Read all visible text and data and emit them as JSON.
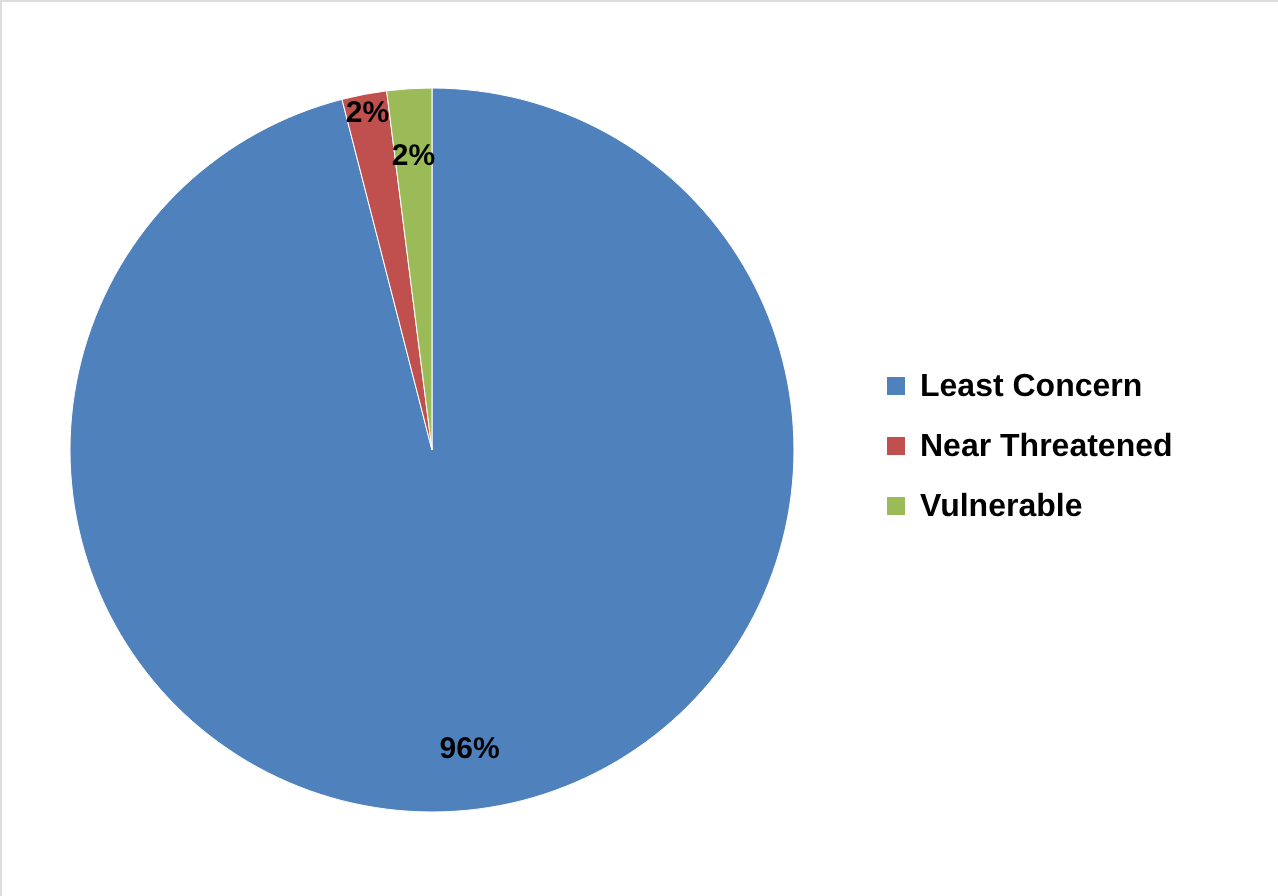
{
  "chart_data": {
    "type": "pie",
    "categories": [
      "Least Concern",
      "Near Threatened",
      "Vulnerable"
    ],
    "values": [
      96,
      2,
      2
    ],
    "colors": [
      "#4f81bd",
      "#c0504d",
      "#9bbb59"
    ],
    "value_labels": [
      "96%",
      "2%",
      "2%"
    ],
    "legend": "right"
  }
}
